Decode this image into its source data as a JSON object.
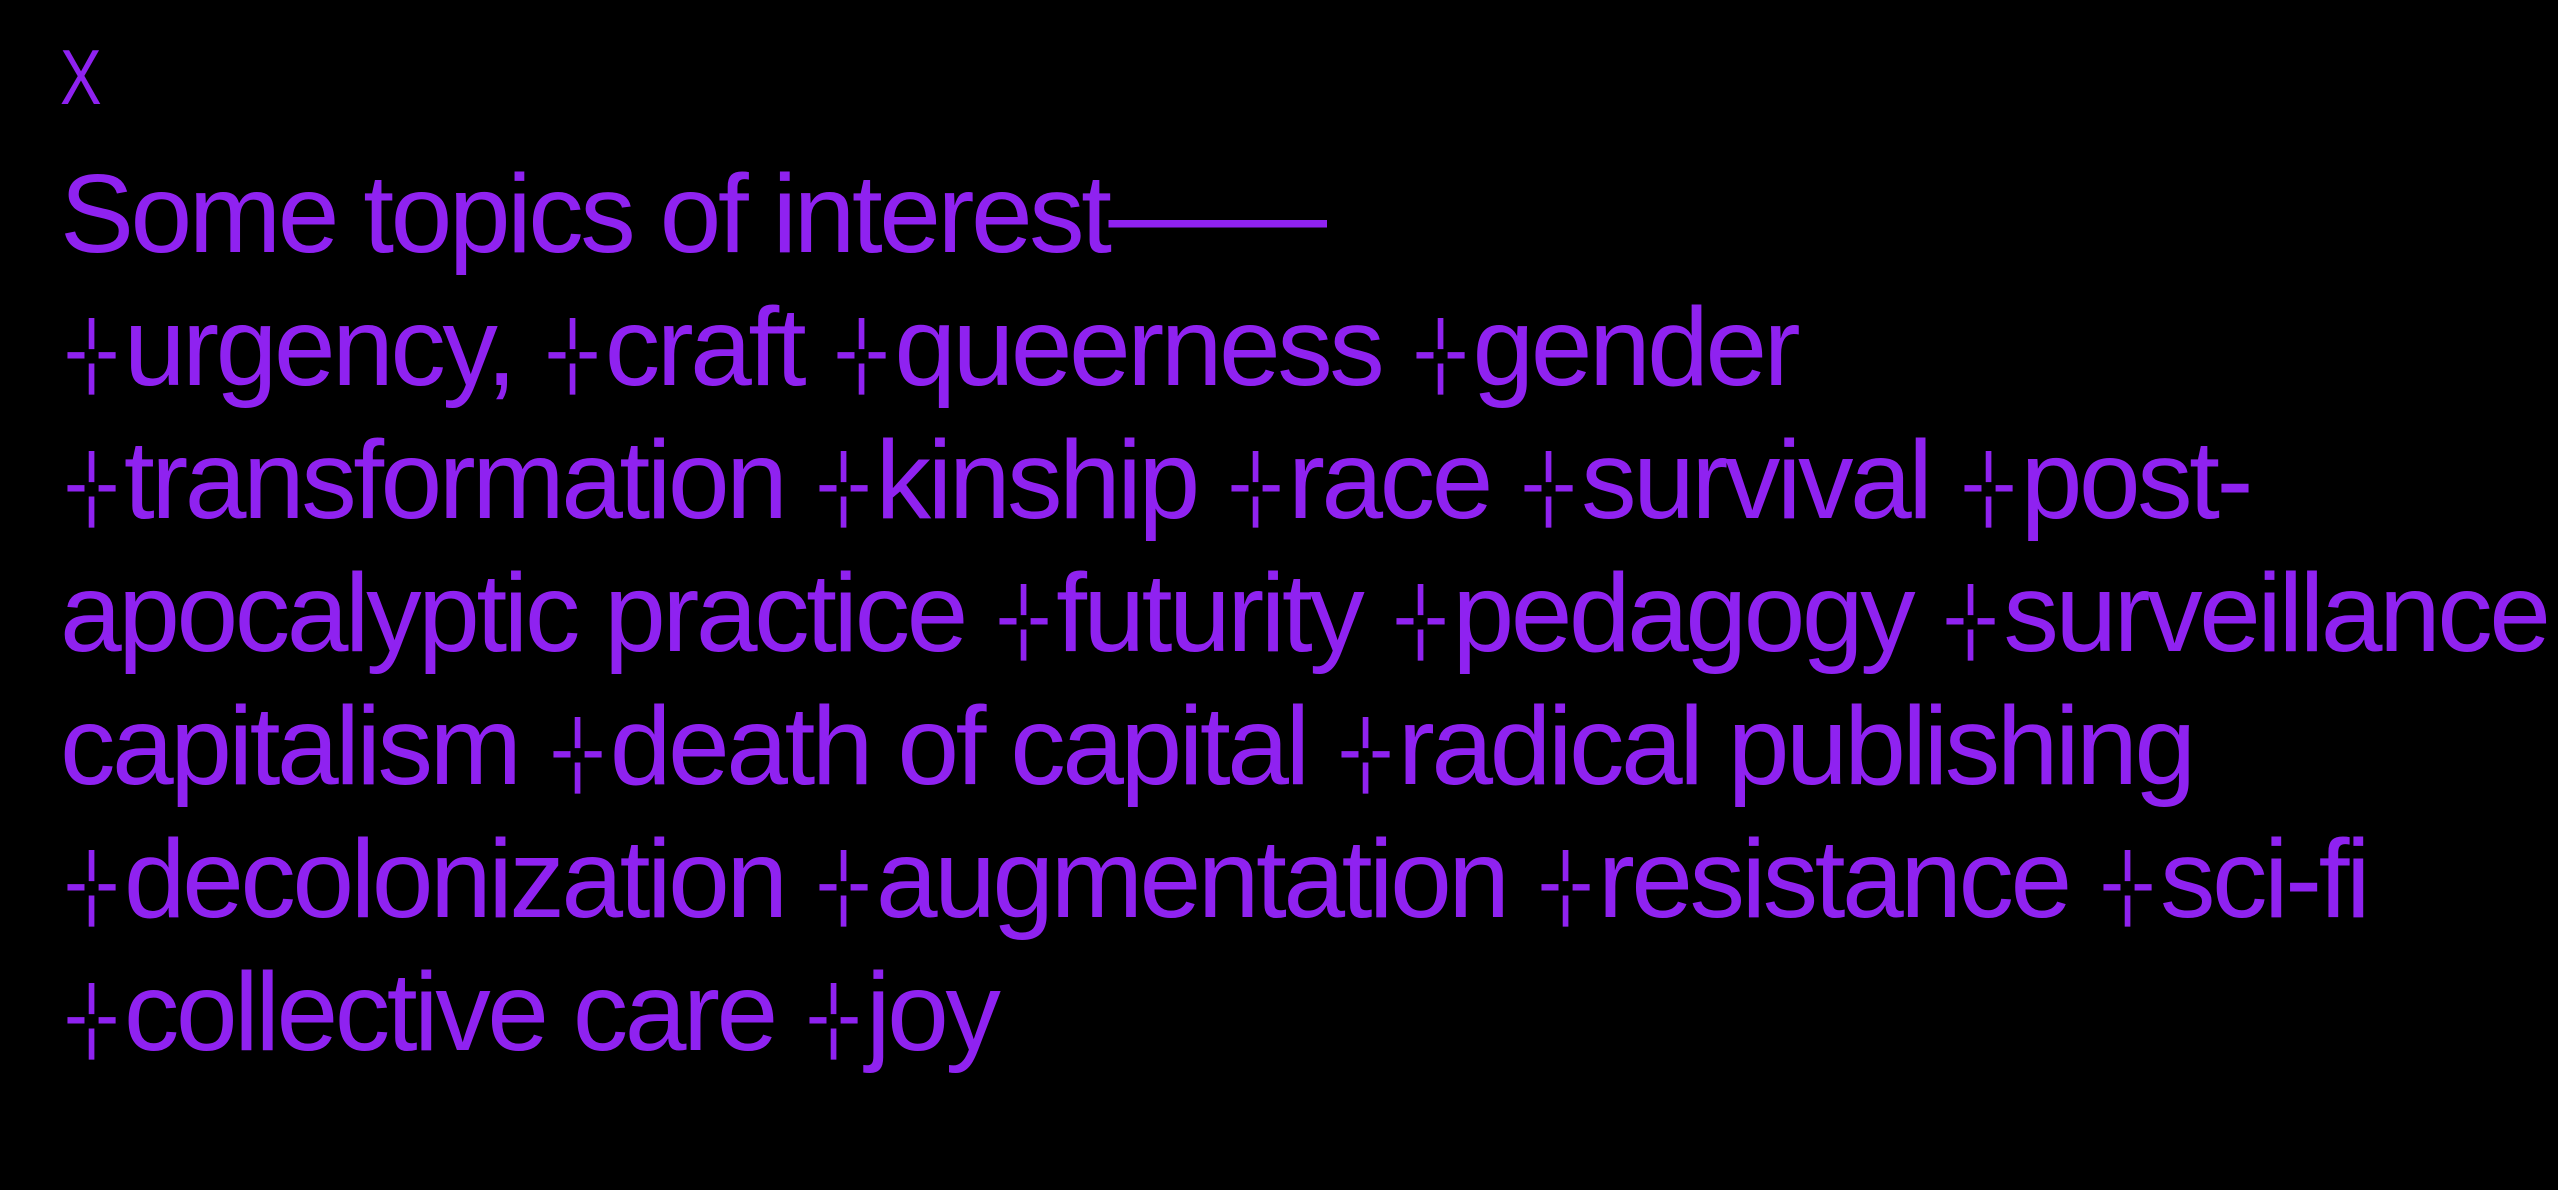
{
  "close_label": "X",
  "heading": "Some topics of interest——",
  "marker": "-¦-",
  "lines": [
    [
      {
        "text": "urgency,"
      },
      {
        "text": "craft"
      },
      {
        "text": "queerness"
      },
      {
        "text": "gender"
      }
    ],
    [
      {
        "text": "transformation"
      },
      {
        "text": "kinship"
      },
      {
        "text": "race"
      },
      {
        "text": "survival"
      },
      {
        "text": "post-"
      }
    ],
    [
      {
        "text": "apocalyptic practice",
        "cont": true
      },
      {
        "text": "futurity"
      },
      {
        "text": "pedagogy"
      },
      {
        "text": "surveillance"
      }
    ],
    [
      {
        "text": "capitalism",
        "cont": true
      },
      {
        "text": "death of capital"
      },
      {
        "text": "radical publishing"
      }
    ],
    [
      {
        "text": "decolonization"
      },
      {
        "text": "augmentation"
      },
      {
        "text": "resistance"
      },
      {
        "text": "sci-fi"
      }
    ],
    [
      {
        "text": "collective care"
      },
      {
        "text": "joy"
      }
    ]
  ],
  "colors": {
    "background": "#000000",
    "text": "#8f22f0"
  }
}
